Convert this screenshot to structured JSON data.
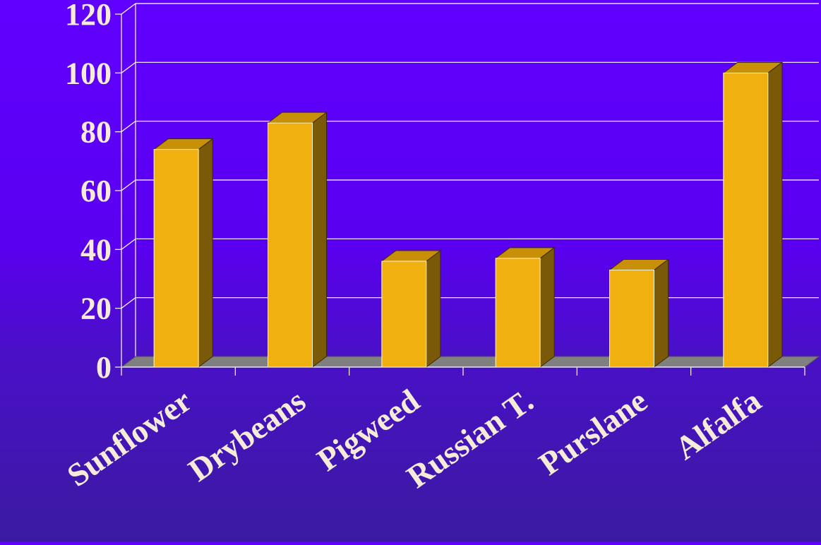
{
  "chart_data": {
    "type": "bar",
    "categories": [
      "Sunflower",
      "Drybeans",
      "Pigweed",
      "Russian T.",
      "Purslane",
      "Alfalfa"
    ],
    "values": [
      74,
      83,
      36,
      37,
      33,
      100
    ],
    "ylim": [
      0,
      120
    ],
    "yticks": [
      0,
      20,
      40,
      60,
      80,
      100,
      120
    ],
    "grid": true,
    "style": "3d-column",
    "colors": {
      "bar_front": "#f0b010",
      "bar_top": "#c89008",
      "bar_side": "#7a5a08",
      "floor": "#808080",
      "gridline": "#ffffff",
      "tick_label": "#f4ecd8"
    }
  }
}
